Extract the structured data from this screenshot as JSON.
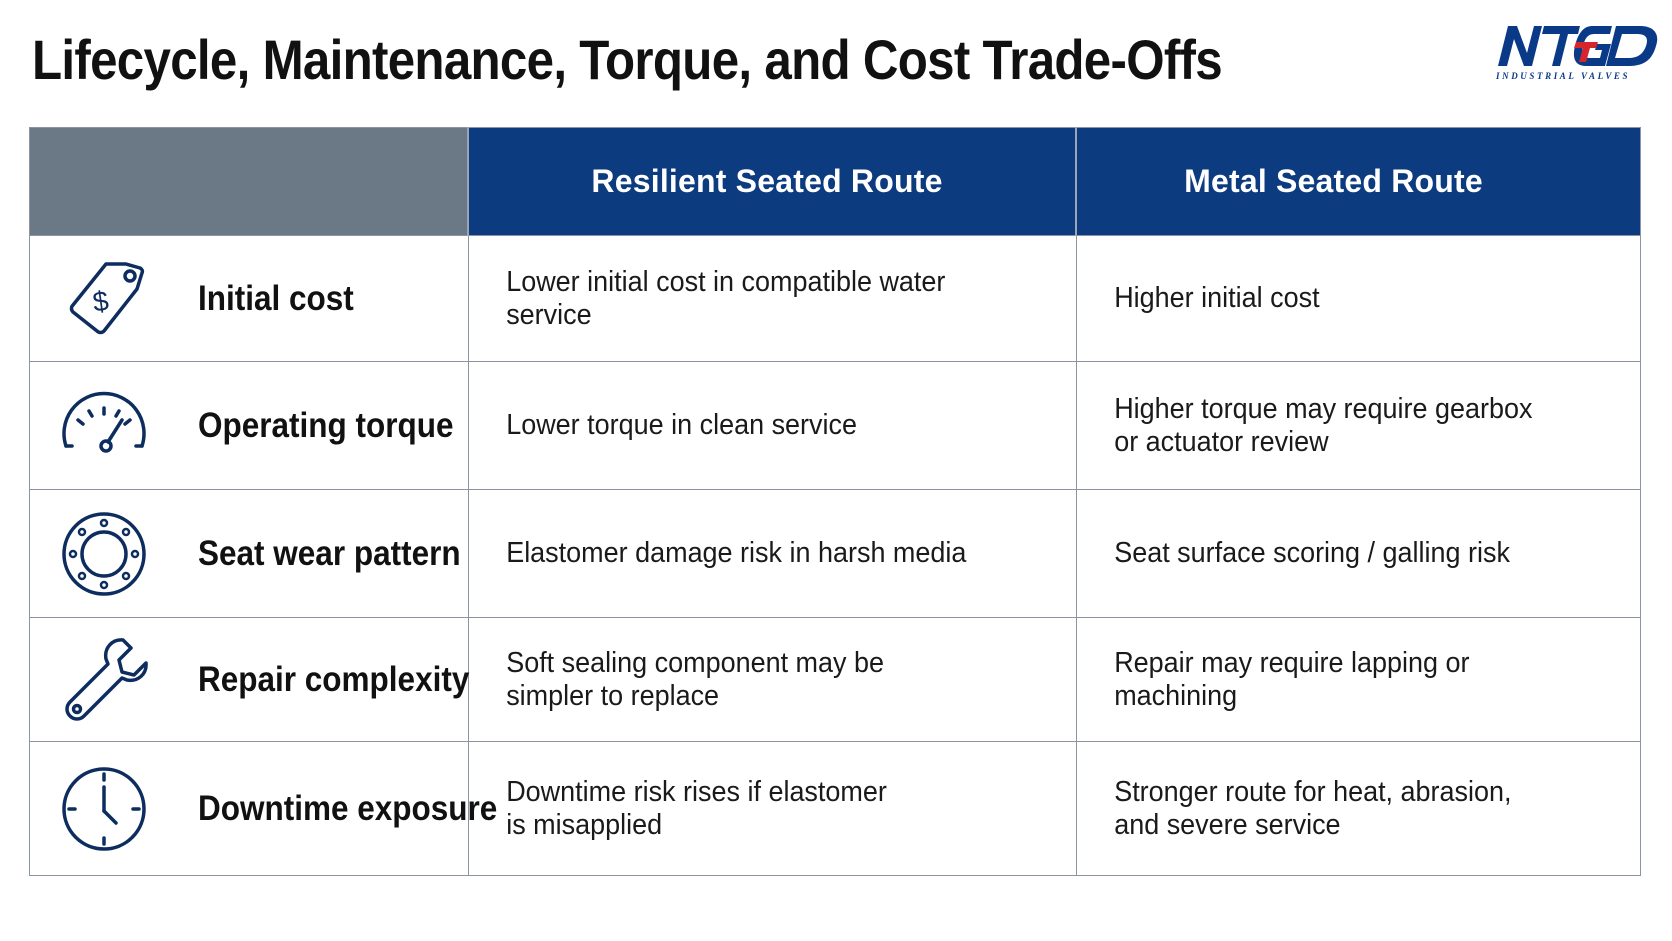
{
  "page": {
    "title": "Lifecycle, Maintenance, Torque, and Cost Trade-Offs"
  },
  "logo": {
    "mark": "NTGD",
    "subtitle": "INDUSTRIAL VALVES",
    "colors": {
      "primary": "#0a3a87",
      "accent": "#d7262b"
    }
  },
  "table": {
    "colors": {
      "header_background": "#0d3b80",
      "corner_background": "#6b7886",
      "icon_color": "#0d2d5e",
      "grid_line": "#8c94a3"
    },
    "columns": [
      "",
      "Resilient Seated Route",
      "Metal Seated Route"
    ],
    "rows": [
      {
        "icon": "price-tag-icon",
        "label": "Initial cost",
        "resilient": "Lower initial cost in compatible water service",
        "metal": "Higher initial cost"
      },
      {
        "icon": "gauge-icon",
        "label": "Operating torque",
        "resilient": "Lower torque in clean service",
        "metal": "Higher torque may require gearbox\nor actuator review"
      },
      {
        "icon": "seat-ring-icon",
        "label": "Seat wear pattern",
        "resilient": "Elastomer damage risk in harsh media",
        "metal": "Seat surface scoring / galling risk"
      },
      {
        "icon": "wrench-icon",
        "label": "Repair complexity",
        "resilient": "Soft sealing component may be\nsimpler to replace",
        "metal": "Repair may require lapping or machining"
      },
      {
        "icon": "clock-icon",
        "label": "Downtime exposure",
        "resilient": "Downtime risk rises if elastomer\nis misapplied",
        "metal": "Stronger route for heat, abrasion,\nand severe service"
      }
    ]
  }
}
